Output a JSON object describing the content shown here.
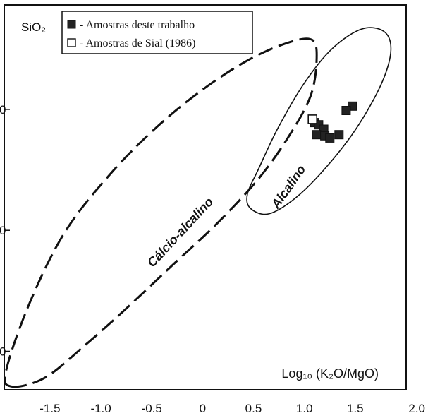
{
  "chart_data": {
    "type": "scatter",
    "title": "",
    "xlabel": "Log₁₀ (K₂O/MgO)",
    "ylabel": "SiO₂",
    "xlim": [
      -1.95,
      2.0
    ],
    "ylim": [
      44.5,
      79.5
    ],
    "x_ticks": [
      -1.5,
      -1.0,
      -0.5,
      0,
      0.5,
      1.0,
      1.5,
      2.0
    ],
    "x_tick_labels": [
      "-1.5",
      "-1.0",
      "-0.5",
      "0",
      "0.5",
      "1.0",
      "1.5",
      "2.0"
    ],
    "y_ticks": [
      48,
      59,
      70
    ],
    "y_tick_labels": [
      "0",
      "0",
      "0"
    ],
    "grid": false,
    "legend_position": "top-left",
    "series": [
      {
        "name": "Amostras deste trabalho",
        "marker": "filled-square",
        "color": "#222222",
        "points": [
          {
            "x": 1.47,
            "y": 70.3
          },
          {
            "x": 1.41,
            "y": 69.9
          },
          {
            "x": 1.1,
            "y": 68.8
          },
          {
            "x": 1.14,
            "y": 68.6
          },
          {
            "x": 1.19,
            "y": 68.2
          },
          {
            "x": 1.12,
            "y": 67.7
          },
          {
            "x": 1.2,
            "y": 67.6
          },
          {
            "x": 1.25,
            "y": 67.4
          },
          {
            "x": 1.34,
            "y": 67.7
          }
        ]
      },
      {
        "name": "Amostras de Sial (1986)",
        "marker": "open-square",
        "color": "#222222",
        "points": [
          {
            "x": 1.08,
            "y": 69.1
          }
        ]
      }
    ],
    "fields": [
      {
        "label": "Cálcio-alcalino",
        "style": "dashed",
        "outline": [
          [
            -1.88,
            44.8
          ],
          [
            -1.55,
            45.6
          ],
          [
            -1.15,
            48.6
          ],
          [
            -0.75,
            51.9
          ],
          [
            -0.3,
            55.8
          ],
          [
            0.15,
            59.7
          ],
          [
            0.55,
            63.7
          ],
          [
            0.85,
            67.6
          ],
          [
            1.06,
            71.2
          ],
          [
            1.12,
            74.4
          ],
          [
            1.08,
            76.3
          ],
          [
            0.85,
            76.1
          ],
          [
            0.45,
            74.5
          ],
          [
            0.0,
            71.8
          ],
          [
            -0.45,
            68.4
          ],
          [
            -0.9,
            64.2
          ],
          [
            -1.35,
            58.9
          ],
          [
            -1.7,
            52.4
          ],
          [
            -1.93,
            46.3
          ]
        ]
      },
      {
        "label": "Alcalino",
        "style": "solid",
        "outline": [
          [
            0.47,
            61.0
          ],
          [
            0.65,
            60.5
          ],
          [
            0.92,
            62.0
          ],
          [
            1.22,
            64.8
          ],
          [
            1.52,
            68.4
          ],
          [
            1.76,
            72.4
          ],
          [
            1.85,
            75.4
          ],
          [
            1.78,
            77.1
          ],
          [
            1.56,
            77.3
          ],
          [
            1.27,
            75.5
          ],
          [
            1.0,
            72.4
          ],
          [
            0.74,
            68.3
          ],
          [
            0.55,
            64.6
          ],
          [
            0.44,
            62.3
          ]
        ]
      }
    ],
    "field_labels": {
      "calc": "Cálcio-alcalino",
      "alk": "Alcalino"
    }
  }
}
